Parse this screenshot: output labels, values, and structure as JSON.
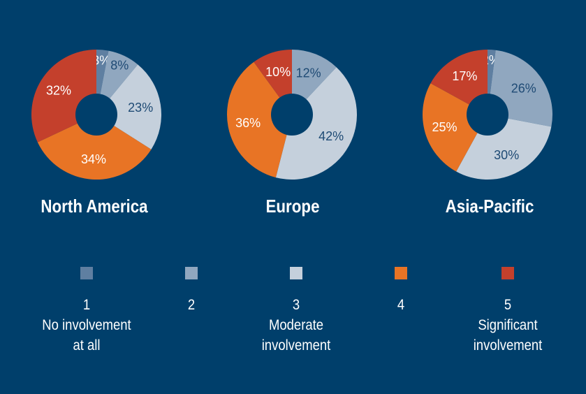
{
  "chart_data": [
    {
      "type": "pie",
      "title": "North America",
      "categories": [
        "1",
        "2",
        "3",
        "4",
        "5"
      ],
      "values": [
        3,
        8,
        23,
        34,
        32
      ],
      "labels": [
        "3%",
        "8%",
        "23%",
        "34%",
        "32%"
      ]
    },
    {
      "type": "pie",
      "title": "Europe",
      "categories": [
        "1",
        "2",
        "3",
        "4",
        "5"
      ],
      "values": [
        0,
        12,
        42,
        36,
        10
      ],
      "labels": [
        "",
        "12%",
        "42%",
        "36%",
        "10%"
      ]
    },
    {
      "type": "pie",
      "title": "Asia-Pacific",
      "categories": [
        "1",
        "2",
        "3",
        "4",
        "5"
      ],
      "values": [
        2,
        26,
        30,
        25,
        17
      ],
      "labels": [
        "2%",
        "26%",
        "30%",
        "25%",
        "17%"
      ]
    }
  ],
  "legend": [
    {
      "number": "1",
      "description": "No involvement\nat all",
      "color": "#5f7fa1"
    },
    {
      "number": "2",
      "description": "",
      "color": "#90a7bf"
    },
    {
      "number": "3",
      "description": "Moderate\ninvolvement",
      "color": "#c5d0dc"
    },
    {
      "number": "4",
      "description": "",
      "color": "#e87425"
    },
    {
      "number": "5",
      "description": "Significant\ninvolvement",
      "color": "#c4402c"
    }
  ],
  "colors": {
    "background": "#003f6b",
    "label_light": "#ffffff",
    "label_dark": "#1e4a74"
  }
}
